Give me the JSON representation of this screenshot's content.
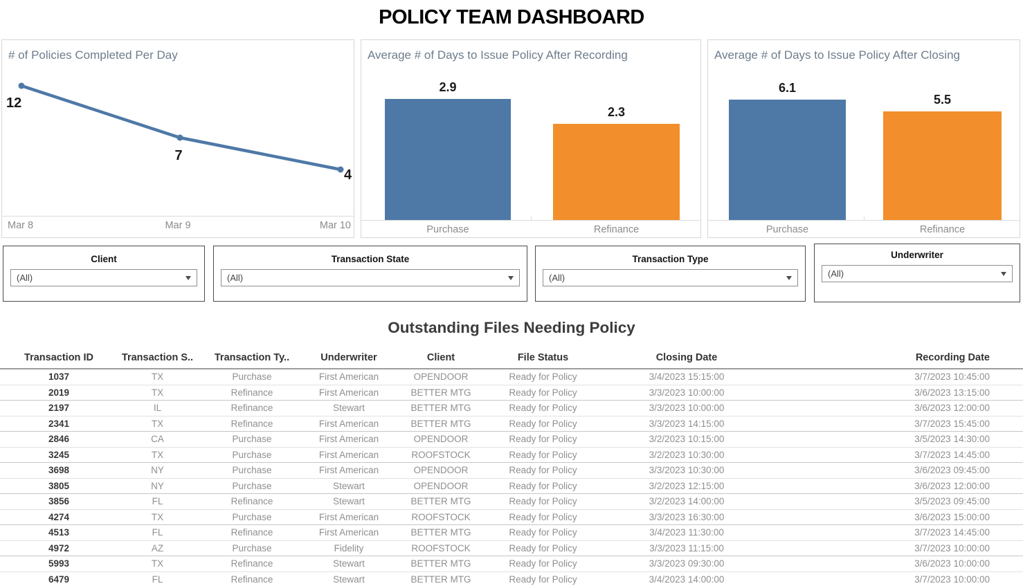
{
  "title": "POLICY TEAM DASHBOARD",
  "colors": {
    "blue": "#4e79a7",
    "orange": "#f28e2b"
  },
  "chart_data": [
    {
      "type": "line",
      "title": "# of Policies Completed Per Day",
      "x": [
        "Mar 8",
        "Mar 9",
        "Mar 10"
      ],
      "values": [
        12,
        7,
        4
      ],
      "point_labels": [
        "12",
        "7",
        "4"
      ],
      "line_color": "#4e79a7",
      "ylim": [
        0,
        13
      ],
      "grid": false,
      "legend": "none"
    },
    {
      "type": "bar",
      "title": "Average # of Days to Issue Policy After Recording",
      "categories": [
        "Purchase",
        "Refinance"
      ],
      "values": [
        2.9,
        2.3
      ],
      "bar_colors": [
        "#4e79a7",
        "#f28e2b"
      ],
      "ylim": [
        0,
        3.05
      ],
      "grid": false,
      "legend": "none"
    },
    {
      "type": "bar",
      "title": "Average # of Days to Issue Policy After Closing",
      "categories": [
        "Purchase",
        "Refinance"
      ],
      "values": [
        6.1,
        5.5
      ],
      "bar_colors": [
        "#4e79a7",
        "#f28e2b"
      ],
      "ylim": [
        0,
        6.45
      ],
      "grid": false,
      "legend": "none"
    }
  ],
  "filters": [
    {
      "label": "Client",
      "value": "(All)"
    },
    {
      "label": "Transaction State",
      "value": "(All)"
    },
    {
      "label": "Transaction Type",
      "value": "(All)"
    },
    {
      "label": "Underwriter",
      "value": "(All)"
    }
  ],
  "table": {
    "title": "Outstanding Files Needing Policy",
    "columns": [
      "Transaction ID",
      "Transaction S..",
      "Transaction Ty..",
      "Underwriter",
      "Client",
      "File Status",
      "Closing Date",
      "Recording Date"
    ],
    "rows": [
      [
        "1037",
        "TX",
        "Purchase",
        "First American",
        "OPENDOOR",
        "Ready for Policy",
        "3/4/2023 15:15:00",
        "3/7/2023 10:45:00"
      ],
      [
        "2019",
        "TX",
        "Refinance",
        "First American",
        "BETTER MTG",
        "Ready for Policy",
        "3/3/2023 10:00:00",
        "3/6/2023 13:15:00"
      ],
      [
        "2197",
        "IL",
        "Refinance",
        "Stewart",
        "BETTER MTG",
        "Ready for Policy",
        "3/3/2023 10:00:00",
        "3/6/2023 12:00:00"
      ],
      [
        "2341",
        "TX",
        "Refinance",
        "First American",
        "BETTER MTG",
        "Ready for Policy",
        "3/3/2023 14:15:00",
        "3/7/2023 15:45:00"
      ],
      [
        "2846",
        "CA",
        "Purchase",
        "First American",
        "OPENDOOR",
        "Ready for Policy",
        "3/2/2023 10:15:00",
        "3/5/2023 14:30:00"
      ],
      [
        "3245",
        "TX",
        "Purchase",
        "First American",
        "ROOFSTOCK",
        "Ready for Policy",
        "3/2/2023 10:30:00",
        "3/7/2023 14:45:00"
      ],
      [
        "3698",
        "NY",
        "Purchase",
        "First American",
        "OPENDOOR",
        "Ready for Policy",
        "3/3/2023 10:30:00",
        "3/6/2023 09:45:00"
      ],
      [
        "3805",
        "NY",
        "Purchase",
        "Stewart",
        "OPENDOOR",
        "Ready for Policy",
        "3/2/2023 12:15:00",
        "3/6/2023 12:00:00"
      ],
      [
        "3856",
        "FL",
        "Refinance",
        "Stewart",
        "BETTER MTG",
        "Ready for Policy",
        "3/2/2023 14:00:00",
        "3/5/2023 09:45:00"
      ],
      [
        "4274",
        "TX",
        "Purchase",
        "First American",
        "ROOFSTOCK",
        "Ready for Policy",
        "3/3/2023 16:30:00",
        "3/6/2023 15:00:00"
      ],
      [
        "4513",
        "FL",
        "Refinance",
        "First American",
        "BETTER MTG",
        "Ready for Policy",
        "3/4/2023 11:30:00",
        "3/7/2023 14:45:00"
      ],
      [
        "4972",
        "AZ",
        "Purchase",
        "Fidelity",
        "ROOFSTOCK",
        "Ready for Policy",
        "3/3/2023 11:15:00",
        "3/7/2023 10:00:00"
      ],
      [
        "5993",
        "TX",
        "Refinance",
        "Stewart",
        "BETTER MTG",
        "Ready for Policy",
        "3/3/2023 09:30:00",
        "3/6/2023 10:00:00"
      ],
      [
        "6479",
        "FL",
        "Refinance",
        "Stewart",
        "BETTER MTG",
        "Ready for Policy",
        "3/4/2023 14:00:00",
        "3/7/2023 10:00:00"
      ]
    ]
  }
}
